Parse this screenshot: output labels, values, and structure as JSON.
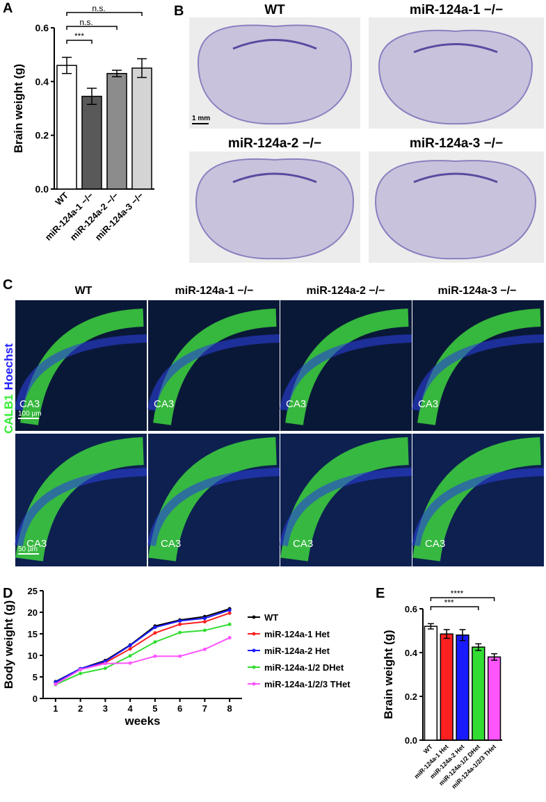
{
  "chart_data": [
    {
      "type": "bar",
      "panel_label": "A",
      "y_label": "Brain weight (g)",
      "categories": [
        "WT",
        "miR-124a-1 −/−",
        "miR-124a-2 −/−",
        "miR-124a-3 −/−"
      ],
      "values": [
        0.46,
        0.345,
        0.43,
        0.45
      ],
      "errors": [
        0.03,
        0.03,
        0.012,
        0.035
      ],
      "colors": [
        "#ffffff",
        "#595959",
        "#8c8c8c",
        "#d4d4d4"
      ],
      "significance": [
        "***",
        "n.s.",
        "n.s."
      ],
      "ylim": [
        0,
        0.6
      ],
      "yticks": [
        {
          "value": 0,
          "label": "0.0"
        },
        0.2,
        0.4,
        0.6
      ]
    },
    {
      "type": "line",
      "panel_label": "D",
      "y_label": "Body weight (g)",
      "x_label": "weeks",
      "x": [
        1,
        2,
        3,
        4,
        5,
        6,
        7,
        8
      ],
      "series": [
        {
          "name": "WT",
          "color": "#000000",
          "values": [
            3.9,
            6.9,
            8.8,
            12.4,
            16.8,
            18.2,
            19.0,
            20.8
          ]
        },
        {
          "name": "miR-124a-1 Het",
          "color": "#ff2020",
          "values": [
            3.6,
            6.8,
            8.3,
            11.5,
            15.2,
            17.2,
            17.8,
            19.8
          ]
        },
        {
          "name": "miR-124a-2 Het",
          "color": "#1a1aff",
          "values": [
            3.8,
            6.9,
            8.6,
            12.3,
            16.5,
            18.0,
            18.6,
            20.5
          ]
        },
        {
          "name": "miR-124a-1/2 DHet",
          "color": "#33dd33",
          "values": [
            3.2,
            5.8,
            7.0,
            9.9,
            13.1,
            15.3,
            15.8,
            17.2
          ]
        },
        {
          "name": "miR-124a-1/2/3 THet",
          "color": "#ff55ff",
          "values": [
            3.3,
            6.7,
            8.1,
            8.2,
            9.8,
            9.8,
            11.4,
            14.1
          ]
        }
      ],
      "xlim": [
        0.5,
        8.5
      ],
      "xticks": [
        1,
        2,
        3,
        4,
        5,
        6,
        7,
        8
      ],
      "ylim": [
        0,
        25
      ],
      "yticks": [
        0,
        5,
        10,
        15,
        20,
        25
      ]
    },
    {
      "type": "bar",
      "panel_label": "E",
      "y_label": "Brain weight (g)",
      "categories": [
        "WT",
        "miR-124a-1 Het",
        "miR-124a-2 Het",
        "miR-124a-1/2 DHet",
        "miR-124a-1/2/3 THet"
      ],
      "values": [
        0.52,
        0.485,
        0.48,
        0.425,
        0.38
      ],
      "errors": [
        0.012,
        0.02,
        0.025,
        0.015,
        0.015
      ],
      "colors": [
        "#ffffff",
        "#ff2020",
        "#1a1aff",
        "#33dd33",
        "#ff55ff"
      ],
      "significance": [
        "***",
        "****"
      ],
      "ylim": [
        0,
        0.6
      ],
      "yticks": [
        {
          "value": 0,
          "label": "0.0"
        },
        0.2,
        0.4,
        0.6
      ]
    }
  ],
  "panel_b": {
    "label": "B",
    "titles": [
      "WT",
      "miR-124a-1 −/−",
      "miR-124a-2 −/−",
      "miR-124a-3 −/−"
    ],
    "scale_bar": "1 mm"
  },
  "panel_c": {
    "label": "C",
    "titles": [
      "WT",
      "miR-124a-1 −/−",
      "miR-124a-2 −/−",
      "miR-124a-3 −/−"
    ],
    "stain_1": "Hoechst",
    "stain_2": "CALB1",
    "region": "CA3",
    "scale_top": "100 µm",
    "scale_bottom": "50 µm"
  }
}
